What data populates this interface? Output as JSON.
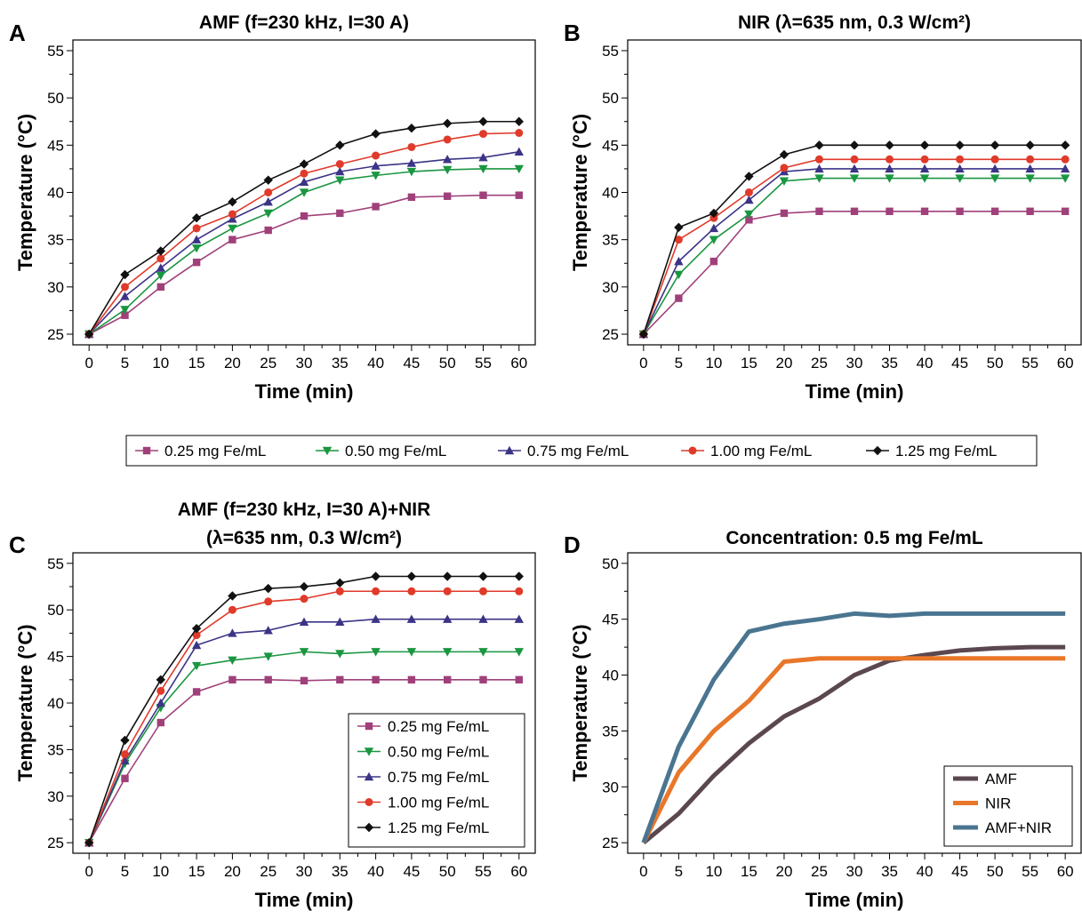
{
  "shared_legend": {
    "entries": [
      "0.25 mg Fe/mL",
      "0.50 mg Fe/mL",
      "0.75 mg Fe/mL",
      "1.00 mg Fe/mL",
      "1.25 mg Fe/mL"
    ]
  },
  "chart_data": [
    {
      "panel": "A",
      "type": "line",
      "title": "AMF (f=230 kHz, I=30 A)",
      "title_lines": [
        "AMF (f=230 kHz, I=30 A)"
      ],
      "xlabel": "Time (min)",
      "ylabel": "Temperature (°C)",
      "x": [
        0,
        5,
        10,
        15,
        20,
        25,
        30,
        35,
        40,
        45,
        50,
        55,
        60
      ],
      "xlim": [
        0,
        60
      ],
      "ylim": [
        25,
        55
      ],
      "yticks": [
        25,
        30,
        35,
        40,
        45,
        50,
        55
      ],
      "grid": false,
      "legend": "none",
      "series": [
        {
          "name": "0.25 mg Fe/mL",
          "color": "#a0407a",
          "marker": "square",
          "values": [
            25,
            27,
            30,
            32.6,
            35,
            36,
            37.5,
            37.8,
            38.5,
            39.5,
            39.6,
            39.7,
            39.7
          ]
        },
        {
          "name": "0.50 mg Fe/mL",
          "color": "#1a9641",
          "marker": "triangle-down",
          "values": [
            25,
            27.6,
            31.2,
            34.1,
            36.2,
            37.8,
            40,
            41.3,
            41.8,
            42.2,
            42.4,
            42.5,
            42.5
          ]
        },
        {
          "name": "0.75 mg Fe/mL",
          "color": "#3b3486",
          "marker": "triangle-up",
          "values": [
            25,
            29,
            32,
            35,
            37.2,
            39,
            41.1,
            42.2,
            42.8,
            43.1,
            43.5,
            43.7,
            44.3
          ]
        },
        {
          "name": "1.00 mg Fe/mL",
          "color": "#e03a2a",
          "marker": "circle",
          "values": [
            25,
            30,
            33,
            36.2,
            37.7,
            40,
            42,
            43,
            43.9,
            44.8,
            45.6,
            46.2,
            46.3
          ]
        },
        {
          "name": "1.25 mg Fe/mL",
          "color": "#111111",
          "marker": "diamond",
          "values": [
            25,
            31.3,
            33.8,
            37.3,
            39,
            41.3,
            43,
            45,
            46.2,
            46.8,
            47.3,
            47.5,
            47.5
          ]
        }
      ]
    },
    {
      "panel": "B",
      "type": "line",
      "title": "NIR (λ=635 nm, 0.3 W/cm²)",
      "title_lines": [
        "NIR (λ=635 nm, 0.3 W/cm²)"
      ],
      "xlabel": "Time (min)",
      "ylabel": "Temperature (°C)",
      "x": [
        0,
        5,
        10,
        15,
        20,
        25,
        30,
        35,
        40,
        45,
        50,
        55,
        60
      ],
      "xlim": [
        0,
        60
      ],
      "ylim": [
        25,
        55
      ],
      "yticks": [
        25,
        30,
        35,
        40,
        45,
        50,
        55
      ],
      "grid": false,
      "legend": "none",
      "series": [
        {
          "name": "0.25 mg Fe/mL",
          "color": "#a0407a",
          "marker": "square",
          "values": [
            25,
            28.8,
            32.7,
            37.1,
            37.8,
            38,
            38,
            38,
            38,
            38,
            38,
            38,
            38
          ]
        },
        {
          "name": "0.50 mg Fe/mL",
          "color": "#1a9641",
          "marker": "triangle-down",
          "values": [
            25,
            31.3,
            35,
            37.7,
            41.2,
            41.5,
            41.5,
            41.5,
            41.5,
            41.5,
            41.5,
            41.5,
            41.5
          ]
        },
        {
          "name": "0.75 mg Fe/mL",
          "color": "#3b3486",
          "marker": "triangle-up",
          "values": [
            25,
            32.7,
            36.2,
            39.2,
            42.2,
            42.5,
            42.5,
            42.5,
            42.5,
            42.5,
            42.5,
            42.5,
            42.5
          ]
        },
        {
          "name": "1.00 mg Fe/mL",
          "color": "#e03a2a",
          "marker": "circle",
          "values": [
            25,
            35,
            37.3,
            40,
            42.6,
            43.5,
            43.5,
            43.5,
            43.5,
            43.5,
            43.5,
            43.5,
            43.5
          ]
        },
        {
          "name": "1.25 mg Fe/mL",
          "color": "#111111",
          "marker": "diamond",
          "values": [
            25,
            36.3,
            37.8,
            41.7,
            44,
            45,
            45,
            45,
            45,
            45,
            45,
            45,
            45
          ]
        }
      ]
    },
    {
      "panel": "C",
      "type": "line",
      "title": "AMF (f=230 kHz, I=30 A)+NIR (λ=635 nm, 0.3 W/cm²)",
      "title_lines": [
        "AMF (f=230 kHz, I=30 A)+NIR",
        "(λ=635 nm, 0.3 W/cm²)"
      ],
      "xlabel": "Time (min)",
      "ylabel": "Temperature (°C)",
      "x": [
        0,
        5,
        10,
        15,
        20,
        25,
        30,
        35,
        40,
        45,
        50,
        55,
        60
      ],
      "xlim": [
        0,
        60
      ],
      "ylim": [
        25,
        55
      ],
      "yticks": [
        25,
        30,
        35,
        40,
        45,
        50,
        55
      ],
      "grid": false,
      "legend": "bottom-right",
      "series": [
        {
          "name": "0.25 mg Fe/mL",
          "color": "#a0407a",
          "marker": "square",
          "values": [
            25,
            31.9,
            37.9,
            41.2,
            42.5,
            42.5,
            42.4,
            42.5,
            42.5,
            42.5,
            42.5,
            42.5,
            42.5
          ]
        },
        {
          "name": "0.50 mg Fe/mL",
          "color": "#1a9641",
          "marker": "triangle-down",
          "values": [
            25,
            33.5,
            39.5,
            44,
            44.6,
            45,
            45.5,
            45.3,
            45.5,
            45.5,
            45.5,
            45.5,
            45.5
          ]
        },
        {
          "name": "0.75 mg Fe/mL",
          "color": "#3b3486",
          "marker": "triangle-up",
          "values": [
            25,
            33.8,
            40,
            46.2,
            47.5,
            47.8,
            48.7,
            48.7,
            49,
            49,
            49,
            49,
            49
          ]
        },
        {
          "name": "1.00 mg Fe/mL",
          "color": "#e03a2a",
          "marker": "circle",
          "values": [
            25,
            34.5,
            41.3,
            47.3,
            50,
            50.9,
            51.2,
            52,
            52,
            52,
            52,
            52,
            52
          ]
        },
        {
          "name": "1.25 mg Fe/mL",
          "color": "#111111",
          "marker": "diamond",
          "values": [
            25,
            36,
            42.5,
            48,
            51.5,
            52.3,
            52.5,
            52.9,
            53.6,
            53.6,
            53.6,
            53.6,
            53.6
          ]
        }
      ]
    },
    {
      "panel": "D",
      "type": "line",
      "title": "Concentration: 0.5 mg Fe/mL",
      "title_lines": [
        "Concentration: 0.5 mg Fe/mL"
      ],
      "xlabel": "Time (min)",
      "ylabel": "Temperature (°C)",
      "x": [
        0,
        5,
        10,
        15,
        20,
        25,
        30,
        35,
        40,
        45,
        50,
        55,
        60
      ],
      "xlim": [
        0,
        60
      ],
      "ylim": [
        25,
        50
      ],
      "yticks": [
        25,
        30,
        35,
        40,
        45,
        50
      ],
      "grid": false,
      "legend": "bottom-right",
      "series": [
        {
          "name": "AMF",
          "color": "#5b4750",
          "marker": "none",
          "values": [
            25,
            27.6,
            31,
            33.9,
            36.3,
            37.9,
            40,
            41.3,
            41.8,
            42.2,
            42.4,
            42.5,
            42.5
          ]
        },
        {
          "name": "NIR",
          "color": "#e8772a",
          "marker": "none",
          "values": [
            25,
            31.3,
            35,
            37.7,
            41.2,
            41.5,
            41.5,
            41.5,
            41.5,
            41.5,
            41.5,
            41.5,
            41.5
          ]
        },
        {
          "name": "AMF+NIR",
          "color": "#4a7590",
          "marker": "none",
          "values": [
            25,
            33.6,
            39.6,
            43.9,
            44.6,
            45,
            45.5,
            45.3,
            45.5,
            45.5,
            45.5,
            45.5,
            45.5
          ]
        }
      ]
    }
  ]
}
